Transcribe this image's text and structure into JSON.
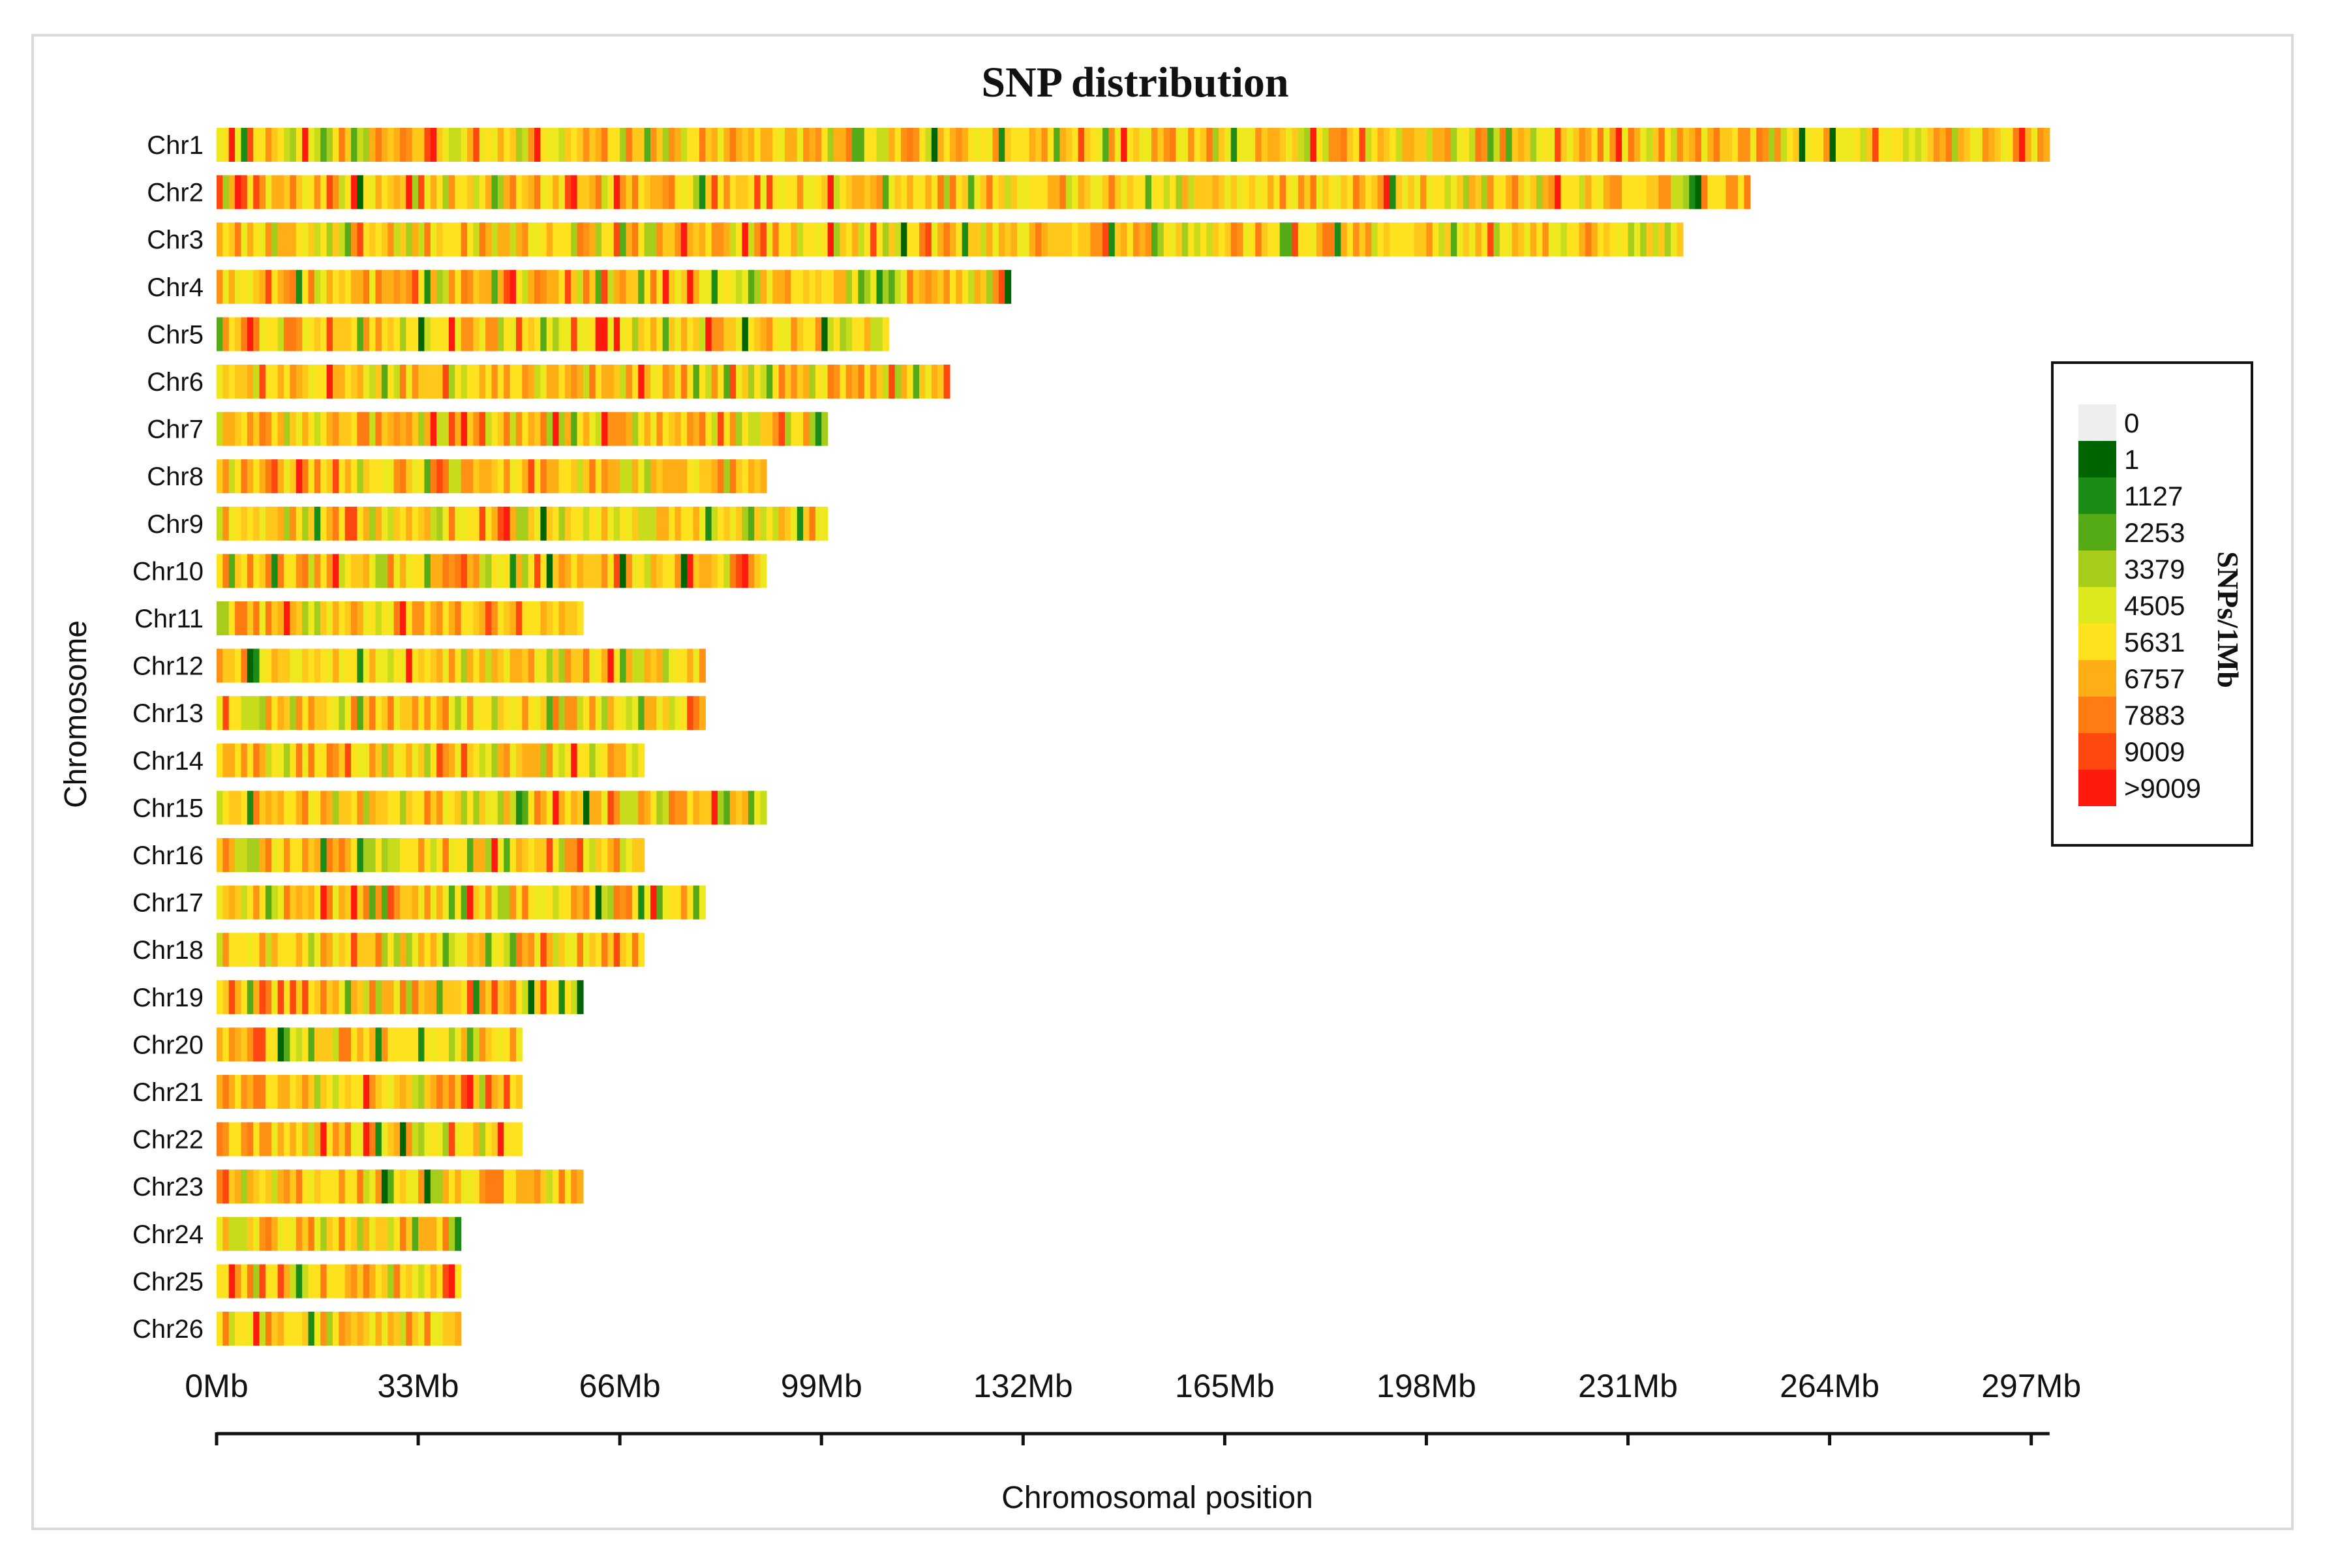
{
  "chart_data": {
    "type": "heatmap",
    "title": "SNP  distribution",
    "xlabel": "Chromosomal position",
    "ylabel": "Chromosome",
    "x_unit": "Mb",
    "xlim": [
      0,
      300
    ],
    "x_ticks": [
      {
        "value": 0,
        "label": "0Mb"
      },
      {
        "value": 33,
        "label": "33Mb"
      },
      {
        "value": 66,
        "label": "66Mb"
      },
      {
        "value": 99,
        "label": "99Mb"
      },
      {
        "value": 132,
        "label": "132Mb"
      },
      {
        "value": 165,
        "label": "165Mb"
      },
      {
        "value": 198,
        "label": "198Mb"
      },
      {
        "value": 231,
        "label": "231Mb"
      },
      {
        "value": 264,
        "label": "264Mb"
      },
      {
        "value": 297,
        "label": "297Mb"
      }
    ],
    "chromosomes": [
      {
        "name": "Chr1",
        "length_mb": 300
      },
      {
        "name": "Chr2",
        "length_mb": 251
      },
      {
        "name": "Chr3",
        "length_mb": 240
      },
      {
        "name": "Chr4",
        "length_mb": 130
      },
      {
        "name": "Chr5",
        "length_mb": 110
      },
      {
        "name": "Chr6",
        "length_mb": 120
      },
      {
        "name": "Chr7",
        "length_mb": 100
      },
      {
        "name": "Chr8",
        "length_mb": 90
      },
      {
        "name": "Chr9",
        "length_mb": 100
      },
      {
        "name": "Chr10",
        "length_mb": 90
      },
      {
        "name": "Chr11",
        "length_mb": 60
      },
      {
        "name": "Chr12",
        "length_mb": 80
      },
      {
        "name": "Chr13",
        "length_mb": 80
      },
      {
        "name": "Chr14",
        "length_mb": 70
      },
      {
        "name": "Chr15",
        "length_mb": 90
      },
      {
        "name": "Chr16",
        "length_mb": 70
      },
      {
        "name": "Chr17",
        "length_mb": 80
      },
      {
        "name": "Chr18",
        "length_mb": 70
      },
      {
        "name": "Chr19",
        "length_mb": 60
      },
      {
        "name": "Chr20",
        "length_mb": 50
      },
      {
        "name": "Chr21",
        "length_mb": 50
      },
      {
        "name": "Chr22",
        "length_mb": 50
      },
      {
        "name": "Chr23",
        "length_mb": 60
      },
      {
        "name": "Chr24",
        "length_mb": 40
      },
      {
        "name": "Chr25",
        "length_mb": 40
      },
      {
        "name": "Chr26",
        "length_mb": 40
      }
    ],
    "bin_size_mb": 1,
    "density_pattern": "dense mix of yellow/orange 1Mb bins with scattered green and red bins",
    "legend": {
      "title": "SNPs/1Mb",
      "placement": "right",
      "entries": [
        {
          "label": "0",
          "color": "#eeeeee"
        },
        {
          "label": "1",
          "color": "#006400"
        },
        {
          "label": "1127",
          "color": "#1c8c16"
        },
        {
          "label": "2253",
          "color": "#55aa18"
        },
        {
          "label": "3379",
          "color": "#a6cc1c"
        },
        {
          "label": "4505",
          "color": "#dde81e"
        },
        {
          "label": "5631",
          "color": "#ffe21e"
        },
        {
          "label": "6757",
          "color": "#ffae16"
        },
        {
          "label": "7883",
          "color": "#ff7c12"
        },
        {
          "label": "9009",
          "color": "#ff4810"
        },
        {
          "label": ">9009",
          "color": "#ff1a0e"
        }
      ]
    }
  }
}
